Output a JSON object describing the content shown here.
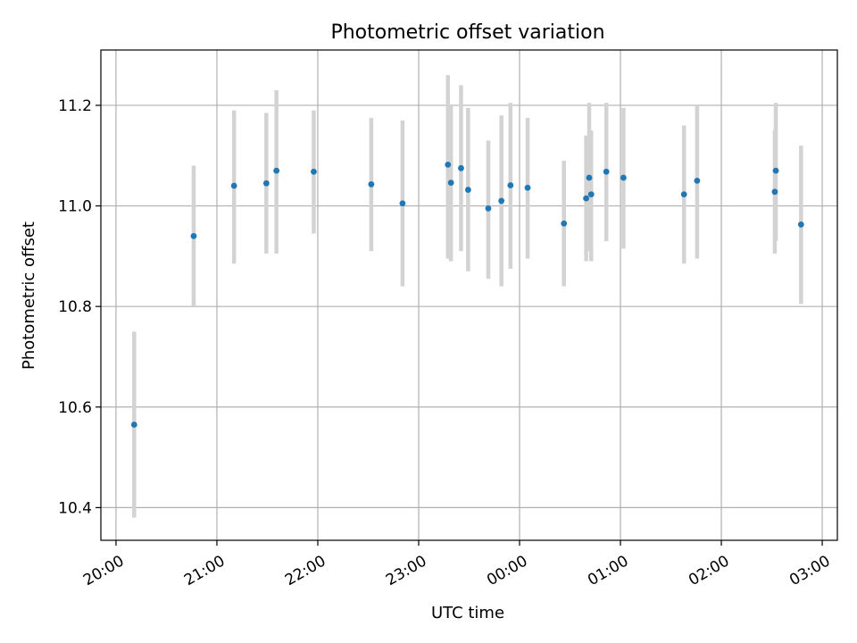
{
  "chart_data": {
    "type": "scatter",
    "title": "Photometric offset variation",
    "xlabel": "UTC time",
    "ylabel": "Photometric offset",
    "x_axis": {
      "type": "time",
      "start_hour": 19.85,
      "end_hour": 27.15,
      "ticks": [
        {
          "hour": 20,
          "label": "20:00"
        },
        {
          "hour": 21,
          "label": "21:00"
        },
        {
          "hour": 22,
          "label": "22:00"
        },
        {
          "hour": 23,
          "label": "23:00"
        },
        {
          "hour": 24,
          "label": "00:00"
        },
        {
          "hour": 25,
          "label": "01:00"
        },
        {
          "hour": 26,
          "label": "02:00"
        },
        {
          "hour": 27,
          "label": "03:00"
        }
      ]
    },
    "ylim": [
      10.335,
      11.31
    ],
    "y_ticks": [
      "10.4",
      "10.6",
      "10.8",
      "11.0",
      "11.2"
    ],
    "grid": true,
    "colors": {
      "point": "#1f77b4",
      "errorbar": "#d3d3d3",
      "grid": "#b0b0b0"
    },
    "points": [
      {
        "t": 20.18,
        "y": 10.565,
        "lo": 10.38,
        "hi": 10.75
      },
      {
        "t": 20.77,
        "y": 10.94,
        "lo": 10.8,
        "hi": 11.08
      },
      {
        "t": 21.17,
        "y": 11.04,
        "lo": 10.885,
        "hi": 11.19
      },
      {
        "t": 21.49,
        "y": 11.045,
        "lo": 10.905,
        "hi": 11.185
      },
      {
        "t": 21.59,
        "y": 11.07,
        "lo": 10.905,
        "hi": 11.23
      },
      {
        "t": 21.96,
        "y": 11.068,
        "lo": 10.945,
        "hi": 11.19
      },
      {
        "t": 22.53,
        "y": 11.043,
        "lo": 10.91,
        "hi": 11.175
      },
      {
        "t": 22.84,
        "y": 11.005,
        "lo": 10.84,
        "hi": 11.17
      },
      {
        "t": 23.29,
        "y": 11.082,
        "lo": 10.895,
        "hi": 11.26
      },
      {
        "t": 23.32,
        "y": 11.046,
        "lo": 10.89,
        "hi": 11.2
      },
      {
        "t": 23.42,
        "y": 11.075,
        "lo": 10.91,
        "hi": 11.24
      },
      {
        "t": 23.49,
        "y": 11.032,
        "lo": 10.87,
        "hi": 11.195
      },
      {
        "t": 23.69,
        "y": 10.995,
        "lo": 10.855,
        "hi": 11.13
      },
      {
        "t": 23.82,
        "y": 11.01,
        "lo": 10.84,
        "hi": 11.18
      },
      {
        "t": 23.91,
        "y": 11.041,
        "lo": 10.875,
        "hi": 11.205
      },
      {
        "t": 24.08,
        "y": 11.036,
        "lo": 10.895,
        "hi": 11.175
      },
      {
        "t": 24.44,
        "y": 10.965,
        "lo": 10.84,
        "hi": 11.09
      },
      {
        "t": 24.66,
        "y": 11.015,
        "lo": 10.89,
        "hi": 11.14
      },
      {
        "t": 24.69,
        "y": 11.056,
        "lo": 10.91,
        "hi": 11.205
      },
      {
        "t": 24.71,
        "y": 11.023,
        "lo": 10.89,
        "hi": 11.15
      },
      {
        "t": 24.86,
        "y": 11.068,
        "lo": 10.93,
        "hi": 11.205
      },
      {
        "t": 25.03,
        "y": 11.056,
        "lo": 10.915,
        "hi": 11.195
      },
      {
        "t": 25.63,
        "y": 11.023,
        "lo": 10.885,
        "hi": 11.16
      },
      {
        "t": 25.76,
        "y": 11.05,
        "lo": 10.895,
        "hi": 11.2
      },
      {
        "t": 26.53,
        "y": 11.028,
        "lo": 10.905,
        "hi": 11.15
      },
      {
        "t": 26.54,
        "y": 11.07,
        "lo": 10.93,
        "hi": 11.205
      },
      {
        "t": 26.79,
        "y": 10.963,
        "lo": 10.805,
        "hi": 11.12
      }
    ]
  }
}
